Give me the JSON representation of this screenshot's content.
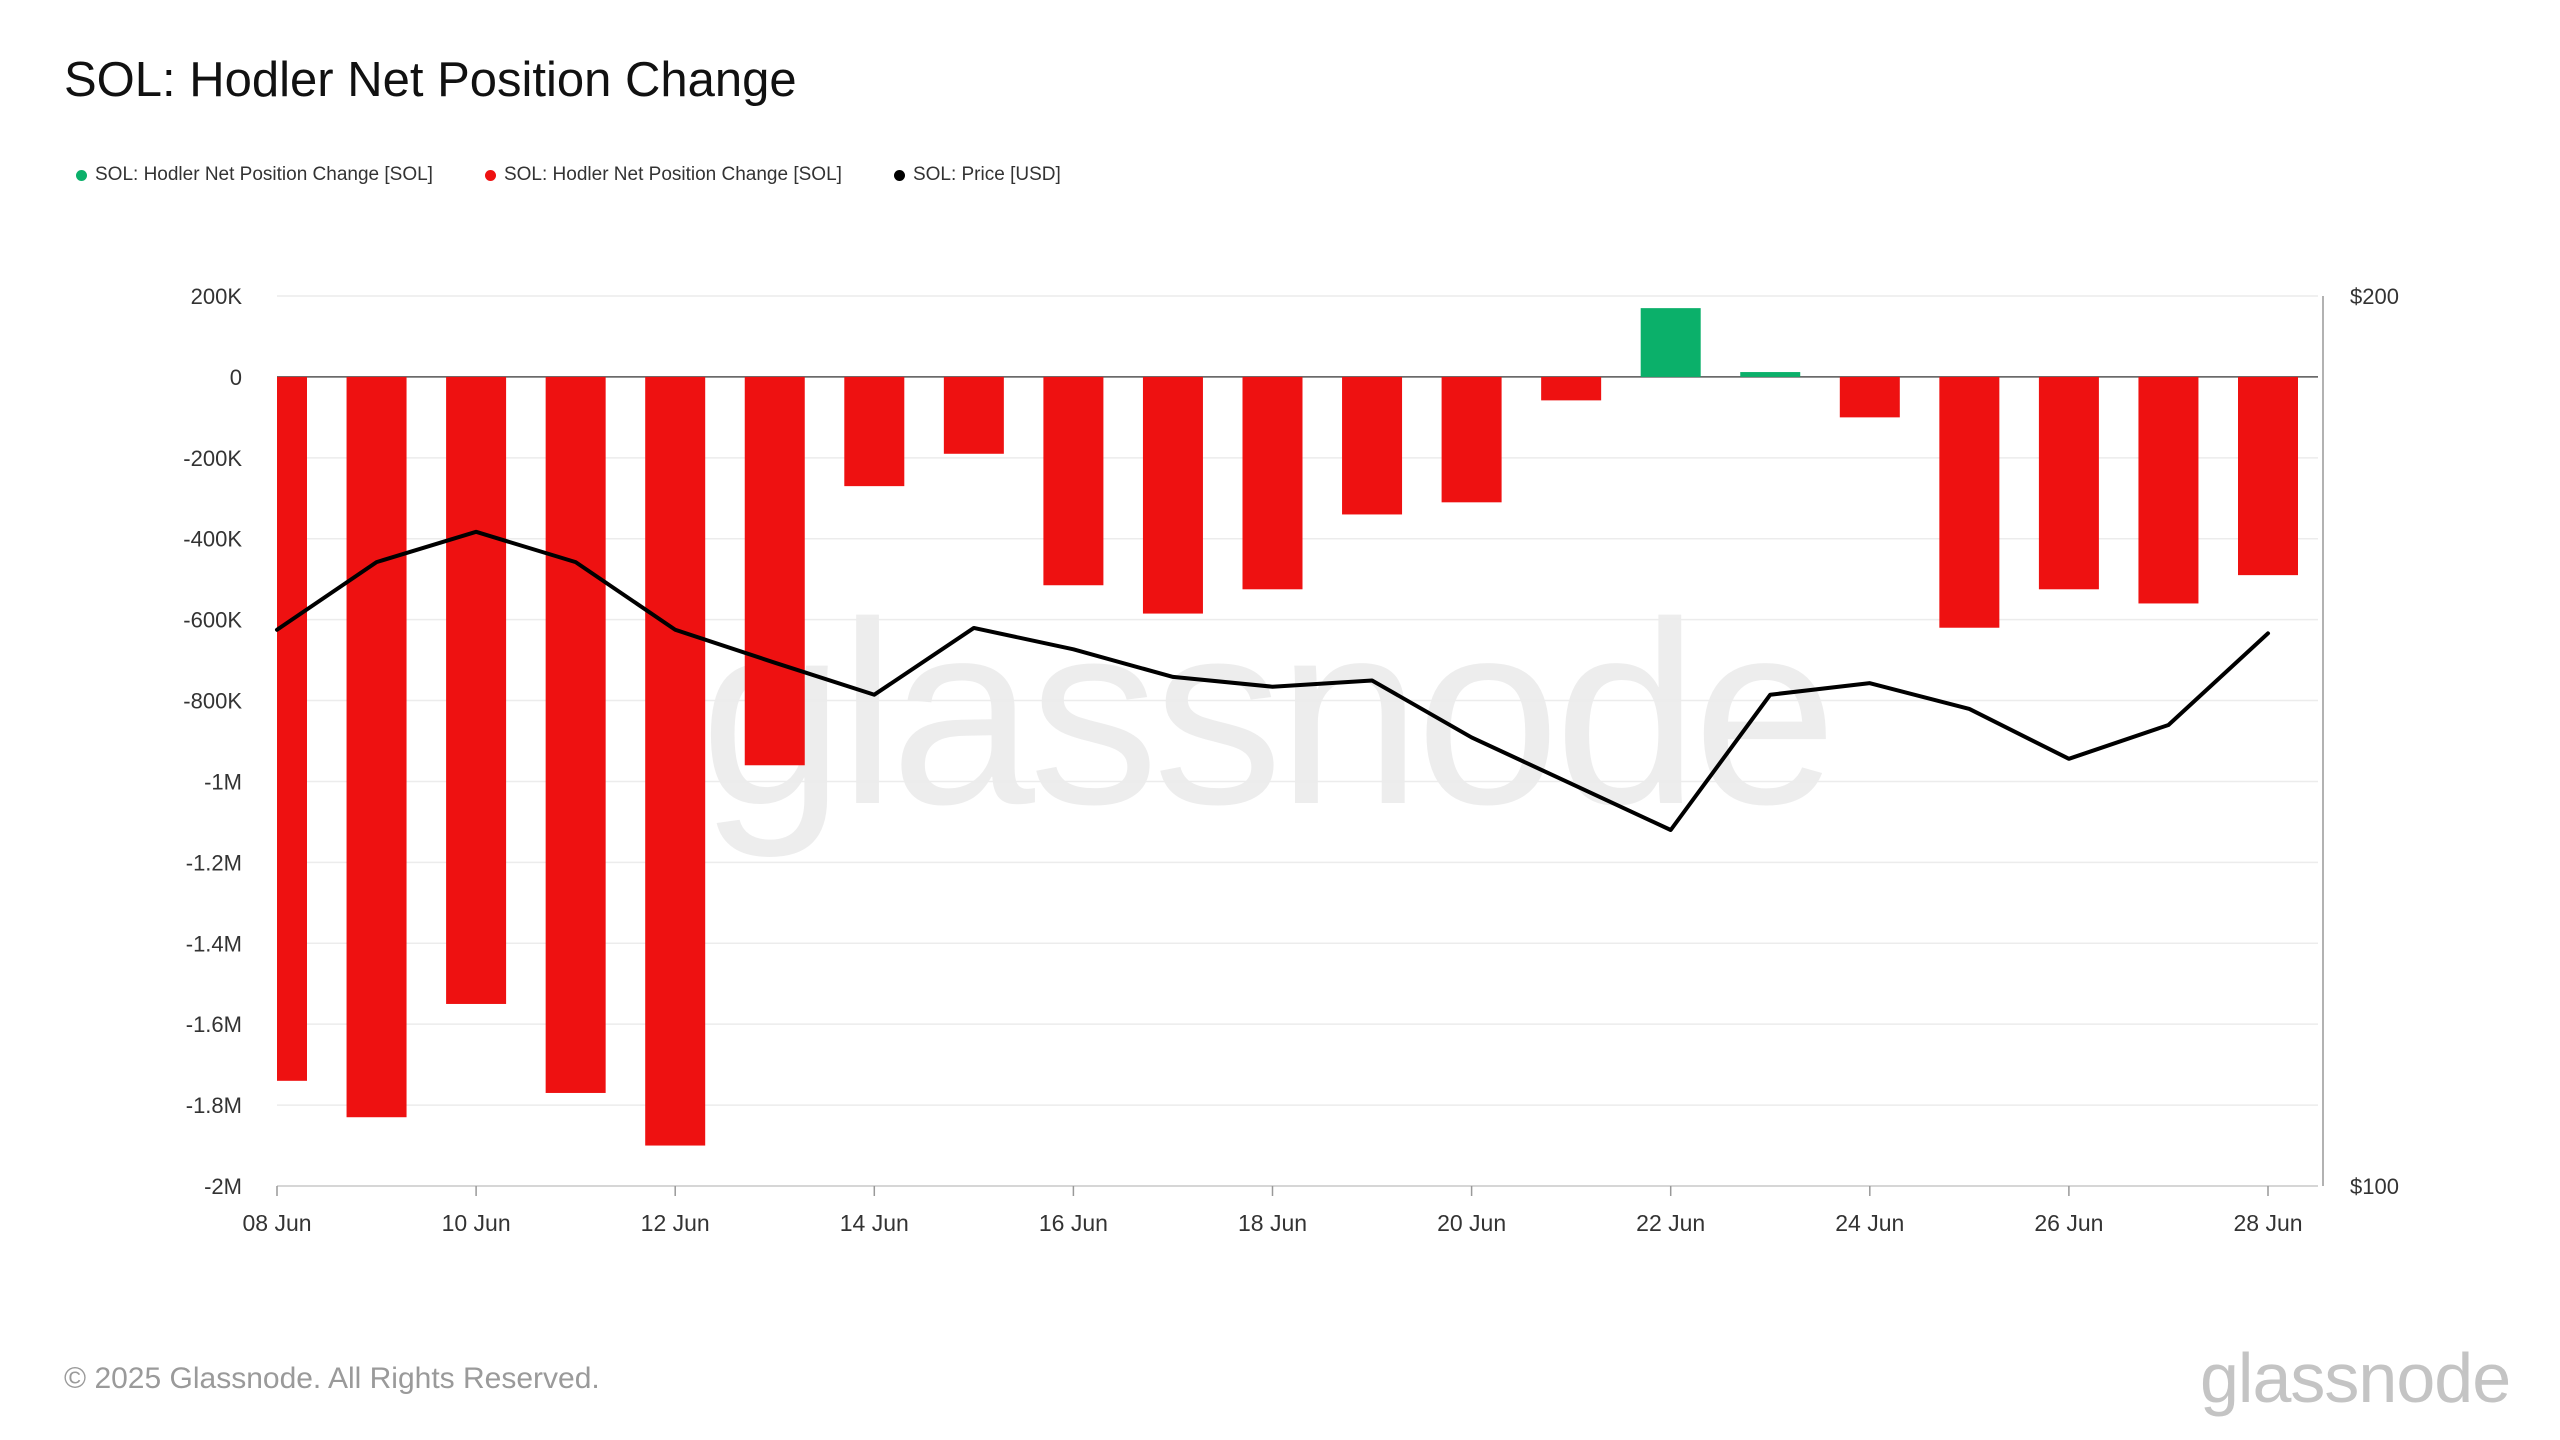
{
  "header": {
    "title": "SOL: Hodler Net Position Change"
  },
  "legend": {
    "items": [
      {
        "label": "SOL: Hodler Net Position Change [SOL]",
        "color": "#0bb06a"
      },
      {
        "label": "SOL: Hodler Net Position Change [SOL]",
        "color": "#ee1111"
      },
      {
        "label": "SOL: Price [USD]",
        "color": "#000000"
      }
    ]
  },
  "footer": {
    "copyright": "© 2025 Glassnode. All Rights Reserved.",
    "brand": "glassnode",
    "watermark": "glassnode"
  },
  "chart_data": {
    "type": "bar",
    "title": "SOL: Hodler Net Position Change",
    "categories": [
      "08 Jun",
      "09 Jun",
      "10 Jun",
      "11 Jun",
      "12 Jun",
      "13 Jun",
      "14 Jun",
      "15 Jun",
      "16 Jun",
      "17 Jun",
      "18 Jun",
      "19 Jun",
      "20 Jun",
      "21 Jun",
      "22 Jun",
      "23 Jun",
      "24 Jun",
      "25 Jun",
      "26 Jun",
      "27 Jun",
      "28 Jun"
    ],
    "x_tick_labels": [
      "08 Jun",
      "10 Jun",
      "12 Jun",
      "14 Jun",
      "16 Jun",
      "18 Jun",
      "20 Jun",
      "22 Jun",
      "24 Jun",
      "26 Jun",
      "28 Jun"
    ],
    "series": [
      {
        "name": "SOL: Hodler Net Position Change [SOL]",
        "axis": "left",
        "type": "bar",
        "positive_color": "#0bb06a",
        "negative_color": "#ee1111",
        "values": [
          -1740000,
          -1830000,
          -1550000,
          -1770000,
          -1900000,
          -960000,
          -270000,
          -190000,
          -515000,
          -585000,
          -525000,
          -340000,
          -310000,
          -58000,
          170000,
          12000,
          -100000,
          -620000,
          -525000,
          -560000,
          -490000
        ]
      },
      {
        "name": "SOL: Price [USD]",
        "axis": "right",
        "type": "line",
        "color": "#000000",
        "values": [
          162.5,
          170.1,
          173.5,
          170.1,
          162.5,
          158.8,
          155.2,
          162.7,
          160.3,
          157.2,
          156.1,
          156.8,
          150.4,
          145.2,
          140.0,
          155.2,
          156.5,
          153.6,
          148.0,
          151.8,
          162.1
        ]
      }
    ],
    "y_left": {
      "ylim": [
        -2000000,
        200000
      ],
      "ticks": [
        200000,
        0,
        -200000,
        -400000,
        -600000,
        -800000,
        -1000000,
        -1200000,
        -1400000,
        -1600000,
        -1800000,
        -2000000
      ],
      "tick_labels": [
        "200K",
        "0",
        "-200K",
        "-400K",
        "-600K",
        "-800K",
        "-1M",
        "-1.2M",
        "-1.4M",
        "-1.6M",
        "-1.8M",
        "-2M"
      ]
    },
    "y_right": {
      "ylim": [
        100,
        200
      ],
      "ticks": [
        200,
        100
      ],
      "tick_labels": [
        "$200",
        "$100"
      ]
    },
    "grid": true,
    "legend_position": "top-left"
  }
}
